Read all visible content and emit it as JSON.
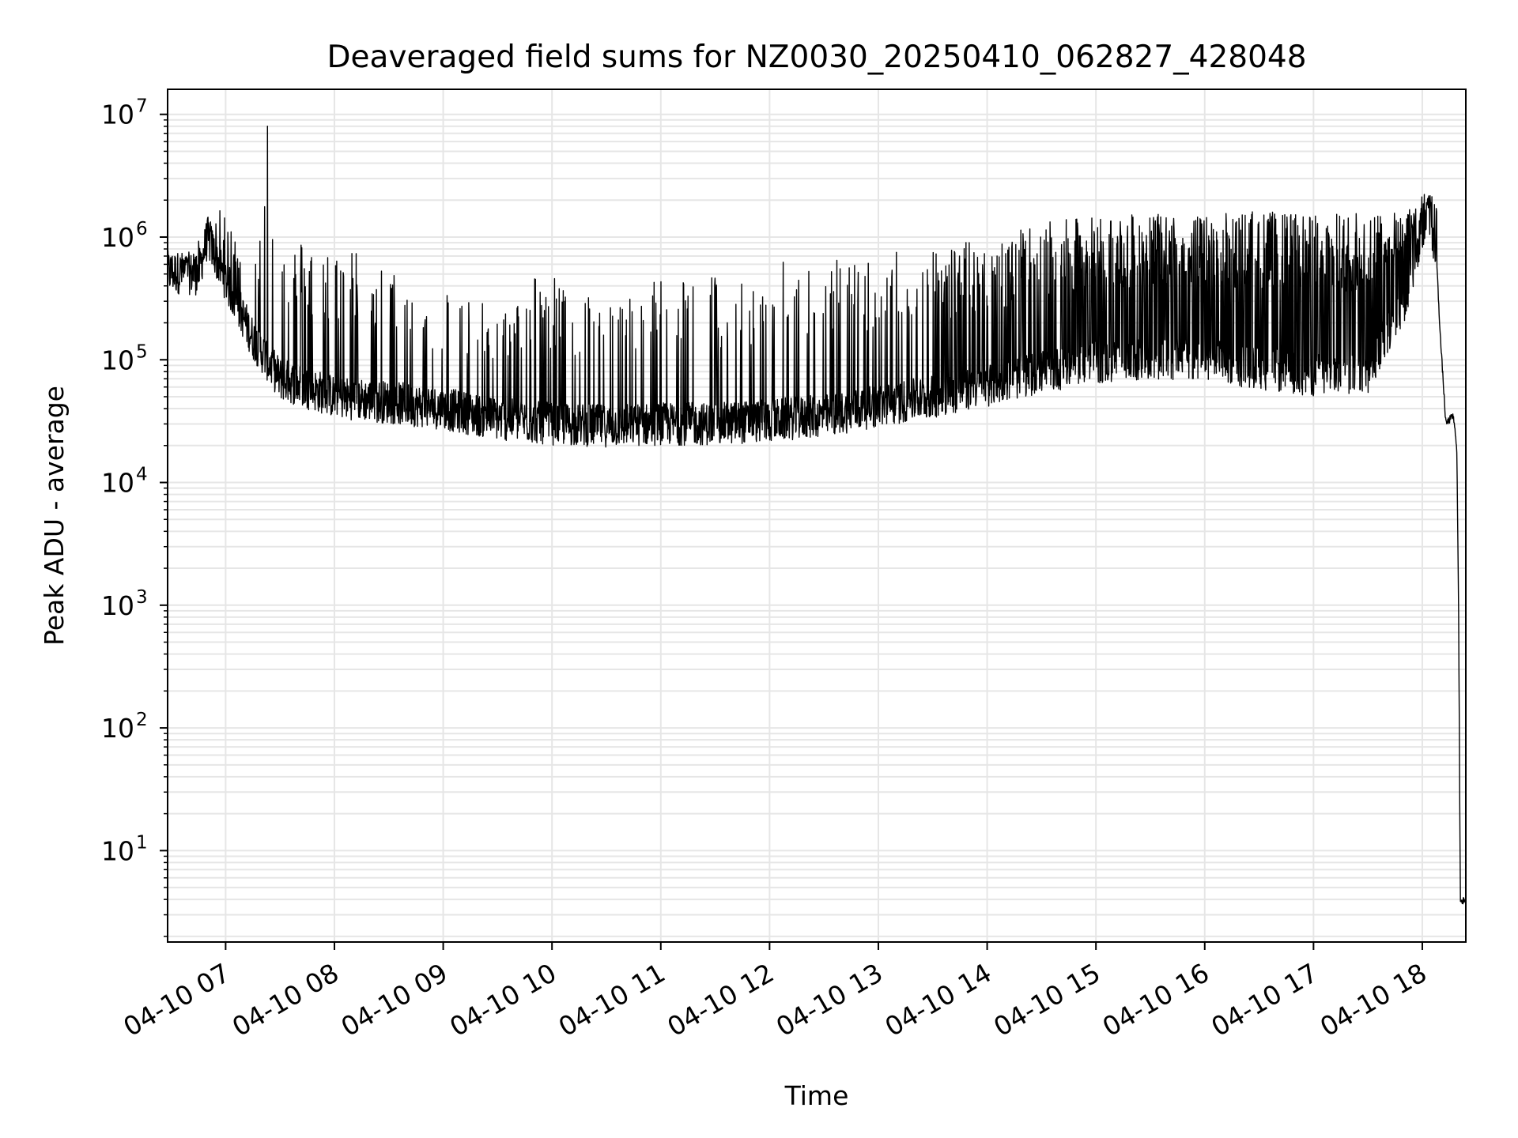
{
  "chart_data": {
    "type": "line",
    "title": "Deaveraged field sums for NZ0030_20250410_062827_428048",
    "xlabel": "Time",
    "ylabel": "Peak ADU - average",
    "yscale": "log",
    "ylim": [
      1.8,
      16000000
    ],
    "xlim": [
      "04-10 06:28",
      "04-10 18:24"
    ],
    "grid": "major and minor, light gray",
    "line_color": "#000000",
    "x_tick_labels": [
      "04-10 07",
      "04-10 08",
      "04-10 09",
      "04-10 10",
      "04-10 11",
      "04-10 12",
      "04-10 13",
      "04-10 14",
      "04-10 15",
      "04-10 16",
      "04-10 17",
      "04-10 18"
    ],
    "x_ticks": [
      "04-10 07:00",
      "04-10 08:00",
      "04-10 09:00",
      "04-10 10:00",
      "04-10 11:00",
      "04-10 12:00",
      "04-10 13:00",
      "04-10 14:00",
      "04-10 15:00",
      "04-10 16:00",
      "04-10 17:00",
      "04-10 18:00"
    ],
    "y_tick_labels": [
      {
        "base": "10",
        "exp": "1"
      },
      {
        "base": "10",
        "exp": "2"
      },
      {
        "base": "10",
        "exp": "3"
      },
      {
        "base": "10",
        "exp": "4"
      },
      {
        "base": "10",
        "exp": "5"
      },
      {
        "base": "10",
        "exp": "6"
      },
      {
        "base": "10",
        "exp": "7"
      }
    ],
    "series": [
      {
        "name": "",
        "baseline": {
          "x": [
            "04-10 06:28",
            "04-10 06:45",
            "04-10 06:50",
            "04-10 07:00",
            "04-10 07:15",
            "04-10 07:30",
            "04-10 08:00",
            "04-10 08:30",
            "04-10 09:00",
            "04-10 09:30",
            "04-10 10:00",
            "04-10 10:30",
            "04-10 11:00",
            "04-10 11:30",
            "04-10 12:00",
            "04-10 12:30",
            "04-10 13:00",
            "04-10 13:30",
            "04-10 14:00",
            "04-10 14:30",
            "04-10 15:00",
            "04-10 15:30",
            "04-10 16:00",
            "04-10 16:30",
            "04-10 17:00",
            "04-10 17:30",
            "04-10 17:52",
            "04-10 18:00",
            "04-10 18:05",
            "04-10 18:08",
            "04-10 18:10",
            "04-10 18:13",
            "04-10 18:17",
            "04-10 18:19",
            "04-10 18:20",
            "04-10 18:21",
            "04-10 18:24"
          ],
          "y": [
            520000,
            500000,
            1000000,
            450000,
            150000,
            70000,
            50000,
            45000,
            40000,
            33000,
            30000,
            29000,
            30000,
            30000,
            32000,
            35000,
            42000,
            50000,
            62000,
            80000,
            95000,
            100000,
            100000,
            85000,
            75000,
            80000,
            350000,
            1200000,
            1300000,
            600000,
            150000,
            30000,
            35000,
            20000,
            1000,
            4,
            3.8
          ]
        },
        "peaks": {
          "x": [
            "04-10 06:40",
            "04-10 06:50",
            "04-10 06:55",
            "04-10 07:05",
            "04-10 07:10",
            "04-10 07:20",
            "04-10 07:23",
            "04-10 07:30",
            "04-10 07:35",
            "04-10 07:45",
            "04-10 07:50",
            "04-10 08:00",
            "04-10 08:08",
            "04-10 08:15",
            "04-10 08:25",
            "04-10 08:35",
            "04-10 08:45",
            "04-10 08:55",
            "04-10 09:05",
            "04-10 09:20",
            "04-10 09:30",
            "04-10 09:40",
            "04-10 09:52",
            "04-10 10:00",
            "04-10 10:10",
            "04-10 10:25",
            "04-10 10:35",
            "04-10 10:50",
            "04-10 11:05",
            "04-10 11:20",
            "04-10 11:30",
            "04-10 11:40",
            "04-10 11:50",
            "04-10 12:00",
            "04-10 12:15",
            "04-10 12:30",
            "04-10 12:45",
            "04-10 13:00",
            "04-10 13:15",
            "04-10 13:30",
            "04-10 13:45",
            "04-10 14:00",
            "04-10 14:15",
            "04-10 14:30",
            "04-10 14:45",
            "04-10 15:00",
            "04-10 15:15",
            "04-10 15:30",
            "04-10 15:45",
            "04-10 16:00",
            "04-10 16:15",
            "04-10 16:30",
            "04-10 16:45",
            "04-10 17:00",
            "04-10 17:15",
            "04-10 17:30",
            "04-10 17:45",
            "04-10 18:02"
          ],
          "y": [
            700000,
            1300000,
            1800000,
            1100000,
            1100000,
            1200000,
            8000000,
            1000000,
            900000,
            1000000,
            800000,
            800000,
            1000000,
            700000,
            600000,
            500000,
            450000,
            350000,
            400000,
            300000,
            250000,
            300000,
            600000,
            500000,
            400000,
            350000,
            300000,
            400000,
            600000,
            650000,
            500000,
            500000,
            400000,
            600000,
            700000,
            650000,
            700000,
            750000,
            800000,
            850000,
            900000,
            1000000,
            1100000,
            1300000,
            1400000,
            1500000,
            1500000,
            1550000,
            1500000,
            1500000,
            1600000,
            1700000,
            1550000,
            1600000,
            1550000,
            1600000,
            1600000,
            2300000
          ]
        }
      }
    ]
  }
}
